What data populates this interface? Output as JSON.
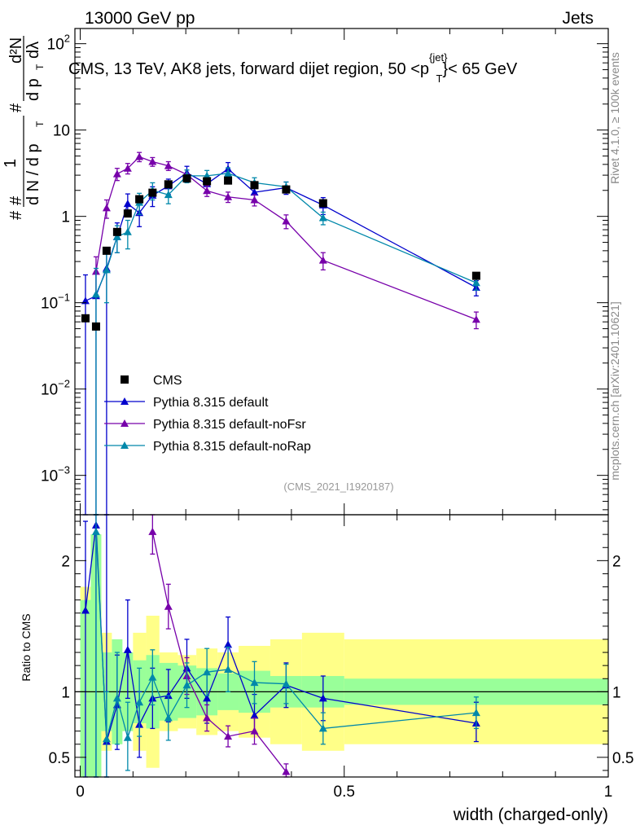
{
  "header": {
    "energy": "13000 GeV pp",
    "process": "Jets",
    "title_main": "CMS, 13 TeV, AK8 jets, forward dijet region, 50 <p",
    "title_sup": "{jet}",
    "title_sub": "T",
    "title_tail": "}< 65 GeV",
    "side_rivet": "Rivet 4.1.0, ≥ 100k events",
    "side_site": "mcplots.cern.ch [arXiv:2401.10621]",
    "analysis": "(CMS_2021_I1920187)",
    "ratio_label": "Ratio to CMS",
    "ylabel": {
      "h1": "#",
      "one": "1",
      "h2": "#",
      "dN": "d N / d p",
      "T1": "T",
      "h3": "#",
      "d2N": "d²N",
      "dp": "d p",
      "T2": "T",
      "dl": "dλ"
    }
  },
  "chart_data": {
    "type": "line",
    "xlabel": "width (charged-only)",
    "xlim": [
      -0.01,
      1.0
    ],
    "ylim_main": [
      0.00035,
      150
    ],
    "ylim_ratio": [
      0.35,
      2.35
    ],
    "x_ticks": [
      {
        "v": 0,
        "label": "0"
      },
      {
        "v": 0.5,
        "label": "0.5"
      },
      {
        "v": 1,
        "label": "1"
      }
    ],
    "y_ticks_main": [
      {
        "v": 0.001,
        "base": "10",
        "exp": "−3"
      },
      {
        "v": 0.01,
        "base": "10",
        "exp": "−2"
      },
      {
        "v": 0.1,
        "base": "10",
        "exp": "−1"
      },
      {
        "v": 1,
        "base": "1",
        "exp": ""
      },
      {
        "v": 10,
        "base": "10",
        "exp": ""
      },
      {
        "v": 100,
        "base": "10",
        "exp": "2"
      }
    ],
    "y_ticks_ratio": [
      {
        "v": 0.5,
        "label": "0.5"
      },
      {
        "v": 1,
        "label": "1"
      },
      {
        "v": 2,
        "label": "2"
      }
    ],
    "bins": [
      [
        0,
        0.02
      ],
      [
        0.02,
        0.04
      ],
      [
        0.04,
        0.06
      ],
      [
        0.06,
        0.08
      ],
      [
        0.08,
        0.1
      ],
      [
        0.1,
        0.125
      ],
      [
        0.125,
        0.15
      ],
      [
        0.15,
        0.185
      ],
      [
        0.185,
        0.22
      ],
      [
        0.22,
        0.26
      ],
      [
        0.26,
        0.3
      ],
      [
        0.3,
        0.36
      ],
      [
        0.36,
        0.42
      ],
      [
        0.42,
        0.5
      ],
      [
        0.5,
        1.0
      ]
    ],
    "cms": {
      "name": "CMS",
      "x": [
        0.01,
        0.03,
        0.05,
        0.07,
        0.09,
        0.112,
        0.137,
        0.167,
        0.202,
        0.24,
        0.28,
        0.33,
        0.39,
        0.46,
        0.75
      ],
      "y": [
        0.066,
        0.053,
        0.4,
        0.66,
        1.08,
        1.58,
        1.88,
        2.35,
        2.75,
        2.55,
        2.6,
        2.3,
        2.05,
        1.42,
        0.205
      ],
      "band_stat": [
        0.7,
        1.2,
        0.3,
        0.4,
        0.3,
        0.24,
        0.28,
        0.22,
        0.2,
        0.18,
        0.14,
        0.16,
        0.12,
        0.12,
        0.1
      ],
      "band_tot": [
        0.8,
        1.2,
        0.45,
        0.3,
        0.3,
        0.45,
        0.58,
        0.3,
        0.28,
        0.33,
        0.3,
        0.35,
        0.4,
        0.45,
        0.4
      ]
    },
    "series": [
      {
        "name": "Pythia 8.315 default",
        "color": "#0000cc",
        "x": [
          0.01,
          0.03,
          0.05,
          0.07,
          0.09,
          0.112,
          0.137,
          0.167,
          0.202,
          0.24,
          0.28,
          0.33,
          0.39,
          0.46,
          0.75
        ],
        "y": [
          0.105,
          0.12,
          0.25,
          0.58,
          1.4,
          1.1,
          1.75,
          2.25,
          3.2,
          2.38,
          3.55,
          1.9,
          2.15,
          1.35,
          0.15
        ],
        "ylo": [
          0.0001,
          0.0001,
          0.0001,
          0.38,
          1.0,
          0.76,
          1.3,
          1.8,
          2.6,
          1.9,
          2.9,
          1.55,
          1.8,
          1.05,
          0.12
        ],
        "yhi": [
          0.21,
          0.22,
          0.42,
          0.84,
          1.82,
          1.45,
          2.2,
          2.7,
          3.8,
          2.85,
          4.2,
          2.25,
          2.5,
          1.65,
          0.18
        ],
        "ratio": [
          1.62,
          2.27,
          0.62,
          0.9,
          1.32,
          0.75,
          0.95,
          0.97,
          1.18,
          0.95,
          1.36,
          0.82,
          1.05,
          0.95,
          0.76
        ],
        "rlo": [
          0.3,
          0.3,
          0.3,
          0.56,
          0.95,
          0.5,
          0.72,
          0.77,
          0.95,
          0.76,
          1.15,
          0.68,
          0.88,
          0.78,
          0.62
        ],
        "rhi": [
          2.3,
          2.35,
          2.35,
          1.28,
          1.7,
          1.0,
          1.18,
          1.17,
          1.4,
          1.15,
          1.57,
          0.98,
          1.22,
          1.12,
          0.92
        ]
      },
      {
        "name": "Pythia 8.315 default-noFsr",
        "color": "#7700aa",
        "x": [
          0.01,
          0.03,
          0.05,
          0.07,
          0.09,
          0.112,
          0.137,
          0.167,
          0.202,
          0.24,
          0.28,
          0.33,
          0.39,
          0.46,
          0.75
        ],
        "y": [
          null,
          0.23,
          1.25,
          3.1,
          3.6,
          4.9,
          4.3,
          3.85,
          3.05,
          1.98,
          1.68,
          1.55,
          0.88,
          0.31,
          0.064
        ],
        "ylo": [
          null,
          0.12,
          0.95,
          2.6,
          3.1,
          4.3,
          3.8,
          3.4,
          2.65,
          1.7,
          1.45,
          1.32,
          0.72,
          0.24,
          0.05
        ],
        "yhi": [
          null,
          0.34,
          1.55,
          3.6,
          4.1,
          5.5,
          4.8,
          4.3,
          3.45,
          2.26,
          1.91,
          1.78,
          1.04,
          0.38,
          0.078
        ],
        "ratio": [
          null,
          null,
          null,
          null,
          null,
          null,
          2.22,
          1.65,
          1.12,
          0.8,
          0.66,
          0.7,
          0.39,
          null,
          null
        ],
        "rlo": [
          null,
          null,
          null,
          null,
          null,
          null,
          2.05,
          1.48,
          0.98,
          0.7,
          0.58,
          0.6,
          0.33,
          null,
          null
        ],
        "rhi": [
          null,
          null,
          null,
          null,
          null,
          null,
          2.35,
          1.82,
          1.26,
          0.9,
          0.74,
          0.8,
          0.45,
          null,
          null
        ]
      },
      {
        "name": "Pythia 8.315 default-noRap",
        "color": "#0088aa",
        "x": [
          0.01,
          0.03,
          0.05,
          0.07,
          0.09,
          0.112,
          0.137,
          0.167,
          0.202,
          0.24,
          0.28,
          0.33,
          0.39,
          0.46,
          0.75
        ],
        "y": [
          null,
          0.125,
          0.24,
          0.58,
          0.66,
          1.45,
          2.0,
          1.78,
          2.95,
          2.95,
          3.15,
          2.45,
          2.2,
          0.96,
          0.17
        ],
        "ylo": [
          null,
          0.0001,
          0.1,
          0.38,
          0.42,
          1.05,
          1.55,
          1.4,
          2.45,
          2.5,
          2.65,
          2.1,
          1.9,
          0.8,
          0.14
        ],
        "yhi": [
          null,
          0.25,
          0.38,
          0.78,
          0.9,
          1.85,
          2.45,
          2.16,
          3.45,
          3.4,
          3.65,
          2.8,
          2.5,
          1.12,
          0.2
        ],
        "ratio": [
          null,
          2.22,
          0.64,
          0.95,
          0.65,
          0.92,
          1.11,
          0.8,
          1.05,
          1.15,
          1.17,
          1.07,
          1.06,
          0.72,
          0.84
        ],
        "rlo": [
          null,
          0.3,
          0.3,
          0.6,
          0.4,
          0.66,
          0.9,
          0.63,
          0.88,
          0.97,
          1.0,
          0.91,
          0.91,
          0.6,
          0.72
        ],
        "rhi": [
          null,
          2.35,
          1.0,
          1.3,
          0.92,
          1.18,
          1.32,
          0.97,
          1.22,
          1.33,
          1.34,
          1.23,
          1.21,
          0.84,
          0.96
        ]
      }
    ]
  }
}
